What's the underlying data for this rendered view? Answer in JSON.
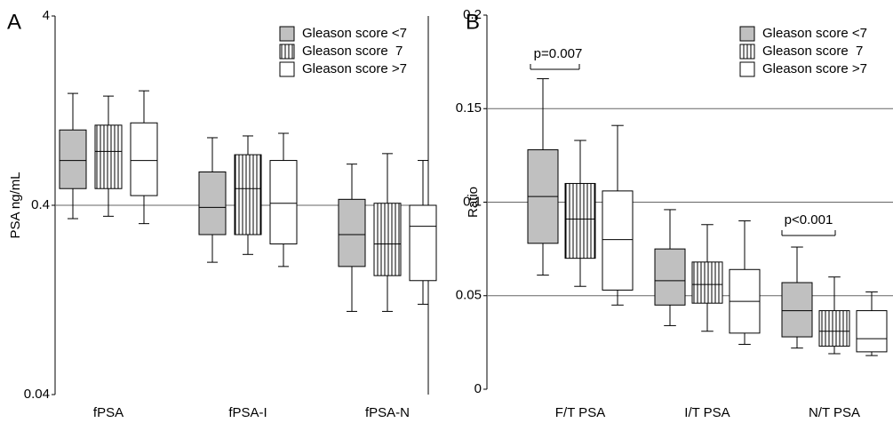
{
  "chart_data": [
    {
      "type": "box",
      "panel_label": "A",
      "ylabel": "PSA ng/mL",
      "log_scale": true,
      "grid": true,
      "ylim": [
        0.04,
        4
      ],
      "yticks": [
        0.04,
        0.4,
        4
      ],
      "categories": [
        "fPSA",
        "fPSA-I",
        "fPSA-N"
      ],
      "series": [
        {
          "name": "Gleason score <7",
          "color": "#c0c0c0",
          "hatch": "none",
          "low": [
            0.34,
            0.2,
            0.11
          ],
          "q1": [
            0.49,
            0.28,
            0.19
          ],
          "median": [
            0.69,
            0.39,
            0.28
          ],
          "q3": [
            1.0,
            0.6,
            0.43
          ],
          "high": [
            1.56,
            0.91,
            0.66
          ]
        },
        {
          "name": "Gleason score  7",
          "color": "#ffffff",
          "hatch": "vertical",
          "low": [
            0.35,
            0.22,
            0.11
          ],
          "q1": [
            0.49,
            0.28,
            0.17
          ],
          "median": [
            0.77,
            0.49,
            0.25
          ],
          "q3": [
            1.06,
            0.74,
            0.41
          ],
          "high": [
            1.51,
            0.93,
            0.75
          ]
        },
        {
          "name": "Gleason score >7",
          "color": "#ffffff",
          "hatch": "none",
          "low": [
            0.32,
            0.19,
            0.12
          ],
          "q1": [
            0.45,
            0.25,
            0.16
          ],
          "median": [
            0.69,
            0.41,
            0.31
          ],
          "q3": [
            1.09,
            0.69,
            0.4
          ],
          "high": [
            1.61,
            0.96,
            0.69
          ]
        }
      ]
    },
    {
      "type": "box",
      "panel_label": "B",
      "ylabel": "Ratio",
      "log_scale": false,
      "grid": true,
      "ylim": [
        0,
        0.2
      ],
      "yticks": [
        0,
        0.05,
        0.1,
        0.15,
        0.2
      ],
      "categories": [
        "F/T PSA",
        "I/T PSA",
        "N/T PSA"
      ],
      "annotations": [
        "p=0.007",
        "p<0.001"
      ],
      "series": [
        {
          "name": "Gleason score <7",
          "color": "#c0c0c0",
          "hatch": "none",
          "low": [
            0.061,
            0.034,
            0.022
          ],
          "q1": [
            0.078,
            0.045,
            0.028
          ],
          "median": [
            0.103,
            0.058,
            0.042
          ],
          "q3": [
            0.128,
            0.075,
            0.057
          ],
          "high": [
            0.166,
            0.096,
            0.076
          ]
        },
        {
          "name": "Gleason score  7",
          "color": "#ffffff",
          "hatch": "vertical",
          "low": [
            0.055,
            0.031,
            0.019
          ],
          "q1": [
            0.07,
            0.046,
            0.023
          ],
          "median": [
            0.091,
            0.056,
            0.031
          ],
          "q3": [
            0.11,
            0.068,
            0.042
          ],
          "high": [
            0.133,
            0.088,
            0.06
          ]
        },
        {
          "name": "Gleason score >7",
          "color": "#ffffff",
          "hatch": "none",
          "low": [
            0.045,
            0.024,
            0.018
          ],
          "q1": [
            0.053,
            0.03,
            0.02
          ],
          "median": [
            0.08,
            0.047,
            0.027
          ],
          "q3": [
            0.106,
            0.064,
            0.042
          ],
          "high": [
            0.141,
            0.09,
            0.052
          ]
        }
      ]
    }
  ]
}
